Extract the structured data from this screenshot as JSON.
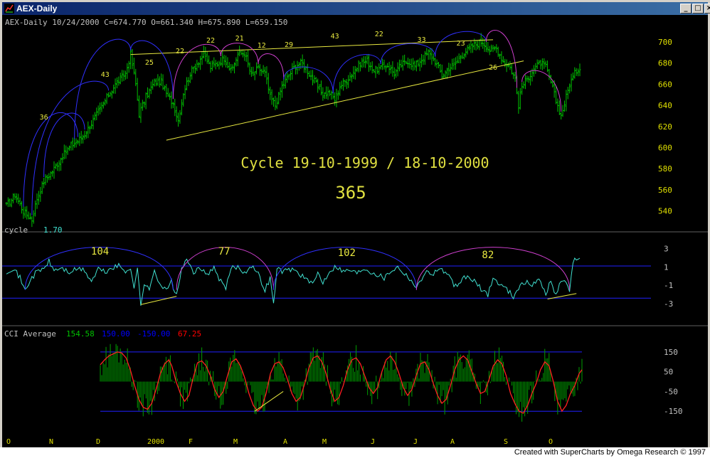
{
  "window": {
    "title": "AEX-Daily",
    "footer": "Created with SuperCharts by Omega Research © 1997",
    "buttons": [
      "minimize",
      "maximize",
      "close"
    ]
  },
  "chart_data": [
    {
      "type": "ohlc",
      "header": "AEX-Daily  10/24/2000 C=674.770 O=661.340 H=675.890 L=659.150",
      "overlay_title": "Cycle 19-10-1999 / 18-10-2000",
      "overlay_value": "365",
      "yticks": [
        540,
        560,
        580,
        600,
        620,
        640,
        660,
        680,
        700
      ],
      "ylim": [
        525,
        712
      ],
      "bar_color": "#00c000",
      "cycle_labels": [
        "36",
        "43",
        "25",
        "22",
        "22",
        "21",
        "12",
        "29",
        "43",
        "22",
        "33",
        "23",
        "26"
      ],
      "anchors": [
        [
          0,
          545
        ],
        [
          5,
          555
        ],
        [
          10,
          540
        ],
        [
          15,
          532
        ],
        [
          18,
          552
        ],
        [
          22,
          568
        ],
        [
          28,
          580
        ],
        [
          33,
          592
        ],
        [
          38,
          602
        ],
        [
          42,
          606
        ],
        [
          46,
          613
        ],
        [
          50,
          623
        ],
        [
          55,
          636
        ],
        [
          60,
          650
        ],
        [
          65,
          662
        ],
        [
          70,
          670
        ],
        [
          73,
          688
        ],
        [
          76,
          660
        ],
        [
          78,
          632
        ],
        [
          82,
          648
        ],
        [
          87,
          662
        ],
        [
          91,
          662
        ],
        [
          95,
          648
        ],
        [
          98,
          642
        ],
        [
          101,
          626
        ],
        [
          104,
          652
        ],
        [
          108,
          670
        ],
        [
          112,
          680
        ],
        [
          116,
          688
        ],
        [
          120,
          676
        ],
        [
          124,
          680
        ],
        [
          128,
          685
        ],
        [
          132,
          672
        ],
        [
          136,
          688
        ],
        [
          140,
          690
        ],
        [
          144,
          668
        ],
        [
          148,
          675
        ],
        [
          152,
          670
        ],
        [
          155,
          648
        ],
        [
          158,
          640
        ],
        [
          162,
          658
        ],
        [
          166,
          668
        ],
        [
          170,
          678
        ],
        [
          174,
          680
        ],
        [
          178,
          670
        ],
        [
          182,
          660
        ],
        [
          186,
          650
        ],
        [
          190,
          652
        ],
        [
          193,
          645
        ],
        [
          196,
          658
        ],
        [
          200,
          664
        ],
        [
          204,
          672
        ],
        [
          208,
          680
        ],
        [
          212,
          682
        ],
        [
          216,
          673
        ],
        [
          220,
          675
        ],
        [
          224,
          678
        ],
        [
          228,
          670
        ],
        [
          232,
          678
        ],
        [
          236,
          682
        ],
        [
          240,
          677
        ],
        [
          244,
          684
        ],
        [
          248,
          690
        ],
        [
          252,
          682
        ],
        [
          256,
          668
        ],
        [
          260,
          675
        ],
        [
          264,
          680
        ],
        [
          268,
          688
        ],
        [
          272,
          694
        ],
        [
          276,
          698
        ],
        [
          280,
          700
        ],
        [
          284,
          692
        ],
        [
          288,
          694
        ],
        [
          290,
          688
        ],
        [
          292,
          682
        ],
        [
          296,
          676
        ],
        [
          299,
          665
        ],
        [
          301,
          640
        ],
        [
          303,
          658
        ],
        [
          306,
          665
        ],
        [
          310,
          675
        ],
        [
          314,
          680
        ],
        [
          317,
          676
        ],
        [
          320,
          662
        ],
        [
          323,
          644
        ],
        [
          326,
          630
        ],
        [
          328,
          642
        ],
        [
          331,
          660
        ],
        [
          334,
          670
        ],
        [
          336,
          675
        ]
      ]
    },
    {
      "type": "line",
      "label": "cycle",
      "value": "1.70",
      "yticks": [
        3,
        1,
        -1,
        -3
      ],
      "ylim": [
        -3.7,
        3.5
      ],
      "bands": [
        1.1,
        -2.4
      ],
      "series_color": "#40e0d0",
      "cycle_labels": [
        "104",
        "77",
        "102",
        "82"
      ],
      "anchors": [
        [
          0,
          0.5
        ],
        [
          4,
          0.9
        ],
        [
          8,
          -0.2
        ],
        [
          11,
          -1.6
        ],
        [
          14,
          -0.4
        ],
        [
          18,
          0.5
        ],
        [
          22,
          0.8
        ],
        [
          25,
          1.6
        ],
        [
          28,
          0.6
        ],
        [
          32,
          0.9
        ],
        [
          37,
          0.4
        ],
        [
          42,
          0.8
        ],
        [
          46,
          0.6
        ],
        [
          50,
          -0.6
        ],
        [
          54,
          0.8
        ],
        [
          58,
          0.4
        ],
        [
          62,
          0.9
        ],
        [
          66,
          1.1
        ],
        [
          70,
          0.5
        ],
        [
          73,
          1.0
        ],
        [
          75,
          -1.3
        ],
        [
          77,
          0.7
        ],
        [
          79,
          -3.1
        ],
        [
          81,
          -0.8
        ],
        [
          84,
          -1.6
        ],
        [
          87,
          0.8
        ],
        [
          90,
          -0.8
        ],
        [
          94,
          -1.6
        ],
        [
          97,
          -0.6
        ],
        [
          100,
          -2.2
        ],
        [
          103,
          0.9
        ],
        [
          106,
          1.6
        ],
        [
          110,
          0.5
        ],
        [
          114,
          0.7
        ],
        [
          118,
          0.3
        ],
        [
          122,
          0.8
        ],
        [
          126,
          -0.6
        ],
        [
          129,
          -1.4
        ],
        [
          132,
          0.9
        ],
        [
          136,
          1.0
        ],
        [
          140,
          0.4
        ],
        [
          144,
          1.2
        ],
        [
          148,
          0.2
        ],
        [
          152,
          -1.5
        ],
        [
          155,
          -0.2
        ],
        [
          157,
          -3.1
        ],
        [
          159,
          0.8
        ],
        [
          163,
          0.5
        ],
        [
          168,
          0.8
        ],
        [
          172,
          0.3
        ],
        [
          176,
          -0.3
        ],
        [
          180,
          -1.0
        ],
        [
          183,
          0.4
        ],
        [
          186,
          -0.7
        ],
        [
          190,
          0.6
        ],
        [
          194,
          1.1
        ],
        [
          198,
          0.5
        ],
        [
          202,
          0.7
        ],
        [
          206,
          0.3
        ],
        [
          210,
          0.9
        ],
        [
          214,
          0.5
        ],
        [
          218,
          0.2
        ],
        [
          222,
          -0.2
        ],
        [
          226,
          0.6
        ],
        [
          230,
          1.0
        ],
        [
          234,
          0.3
        ],
        [
          238,
          -0.4
        ],
        [
          241,
          -1.4
        ],
        [
          243,
          -0.6
        ],
        [
          246,
          0.5
        ],
        [
          250,
          0.2
        ],
        [
          254,
          0.8
        ],
        [
          258,
          0.4
        ],
        [
          262,
          -0.6
        ],
        [
          265,
          -1.4
        ],
        [
          268,
          -0.2
        ],
        [
          272,
          -0.1
        ],
        [
          276,
          -0.8
        ],
        [
          280,
          -1.6
        ],
        [
          283,
          -2.0
        ],
        [
          286,
          -0.2
        ],
        [
          290,
          -0.9
        ],
        [
          294,
          -1.4
        ],
        [
          298,
          -2.2
        ],
        [
          301,
          -1.2
        ],
        [
          305,
          -0.7
        ],
        [
          309,
          -0.9
        ],
        [
          313,
          -0.4
        ],
        [
          317,
          -1.8
        ],
        [
          320,
          -0.6
        ],
        [
          323,
          -2.1
        ],
        [
          326,
          -0.3
        ],
        [
          329,
          -0.9
        ],
        [
          331,
          -1.5
        ],
        [
          333,
          1.6
        ],
        [
          336,
          1.8
        ]
      ]
    },
    {
      "type": "bar+line",
      "label": "CCI Average",
      "values_text": [
        "154.58",
        "150.00",
        "-150.00",
        "67.25"
      ],
      "value_colors": [
        "#00c000",
        "#0000ff",
        "#0000ff",
        "#ff0000"
      ],
      "yticks": [
        150,
        50,
        -50,
        -150
      ],
      "ylim": [
        -250,
        200
      ],
      "bands": [
        150,
        -150
      ],
      "line_color": "#ff2020",
      "hist_color": "#00a000",
      "line_points": [
        [
          0,
          85
        ],
        [
          3,
          110
        ],
        [
          6,
          130
        ],
        [
          9,
          140
        ],
        [
          12,
          150
        ],
        [
          15,
          145
        ],
        [
          18,
          120
        ],
        [
          21,
          60
        ],
        [
          24,
          -20
        ],
        [
          27,
          -90
        ],
        [
          30,
          -130
        ],
        [
          33,
          -140
        ],
        [
          36,
          -110
        ],
        [
          39,
          -40
        ],
        [
          42,
          40
        ],
        [
          45,
          90
        ],
        [
          48,
          110
        ],
        [
          50,
          80
        ],
        [
          53,
          0
        ],
        [
          56,
          -60
        ],
        [
          59,
          -100
        ],
        [
          62,
          -70
        ],
        [
          65,
          20
        ],
        [
          68,
          95
        ],
        [
          71,
          105
        ],
        [
          74,
          80
        ],
        [
          77,
          30
        ],
        [
          80,
          -40
        ],
        [
          83,
          -80
        ],
        [
          86,
          -50
        ],
        [
          89,
          30
        ],
        [
          92,
          100
        ],
        [
          95,
          115
        ],
        [
          98,
          80
        ],
        [
          101,
          20
        ],
        [
          104,
          -60
        ],
        [
          107,
          -120
        ],
        [
          110,
          -150
        ],
        [
          113,
          -130
        ],
        [
          116,
          -60
        ],
        [
          119,
          40
        ],
        [
          122,
          90
        ],
        [
          125,
          100
        ],
        [
          128,
          70
        ],
        [
          131,
          10
        ],
        [
          134,
          -60
        ],
        [
          137,
          -100
        ],
        [
          140,
          -80
        ],
        [
          143,
          -10
        ],
        [
          146,
          70
        ],
        [
          149,
          120
        ],
        [
          152,
          130
        ],
        [
          155,
          100
        ],
        [
          158,
          40
        ],
        [
          161,
          -40
        ],
        [
          164,
          -100
        ],
        [
          167,
          -80
        ],
        [
          170,
          -20
        ],
        [
          173,
          60
        ],
        [
          176,
          110
        ],
        [
          179,
          120
        ],
        [
          182,
          90
        ],
        [
          185,
          30
        ],
        [
          188,
          -30
        ],
        [
          191,
          -60
        ],
        [
          194,
          -30
        ],
        [
          197,
          50
        ],
        [
          200,
          110
        ],
        [
          203,
          130
        ],
        [
          206,
          100
        ],
        [
          209,
          40
        ],
        [
          212,
          -30
        ],
        [
          215,
          -70
        ],
        [
          218,
          -40
        ],
        [
          221,
          30
        ],
        [
          224,
          90
        ],
        [
          227,
          100
        ],
        [
          230,
          60
        ],
        [
          233,
          -10
        ],
        [
          236,
          -70
        ],
        [
          239,
          -110
        ],
        [
          242,
          -90
        ],
        [
          245,
          -20
        ],
        [
          248,
          60
        ],
        [
          251,
          110
        ],
        [
          254,
          130
        ],
        [
          257,
          110
        ],
        [
          260,
          50
        ],
        [
          263,
          -10
        ],
        [
          266,
          -60
        ],
        [
          269,
          -50
        ],
        [
          272,
          10
        ],
        [
          275,
          80
        ],
        [
          278,
          110
        ],
        [
          281,
          90
        ],
        [
          284,
          30
        ],
        [
          287,
          -60
        ],
        [
          290,
          -110
        ],
        [
          293,
          -150
        ],
        [
          296,
          -160
        ],
        [
          299,
          -120
        ],
        [
          302,
          -60
        ],
        [
          305,
          -10
        ],
        [
          308,
          60
        ],
        [
          311,
          100
        ],
        [
          314,
          80
        ],
        [
          317,
          0
        ],
        [
          320,
          -100
        ],
        [
          323,
          -150
        ],
        [
          326,
          -120
        ],
        [
          329,
          -60
        ],
        [
          332,
          -20
        ],
        [
          335,
          40
        ],
        [
          337,
          60
        ]
      ],
      "x_month_labels": [
        "O",
        "N",
        "D",
        "2000",
        "F",
        "M",
        "A",
        "M",
        "J",
        "J",
        "A",
        "S",
        "O"
      ]
    }
  ]
}
